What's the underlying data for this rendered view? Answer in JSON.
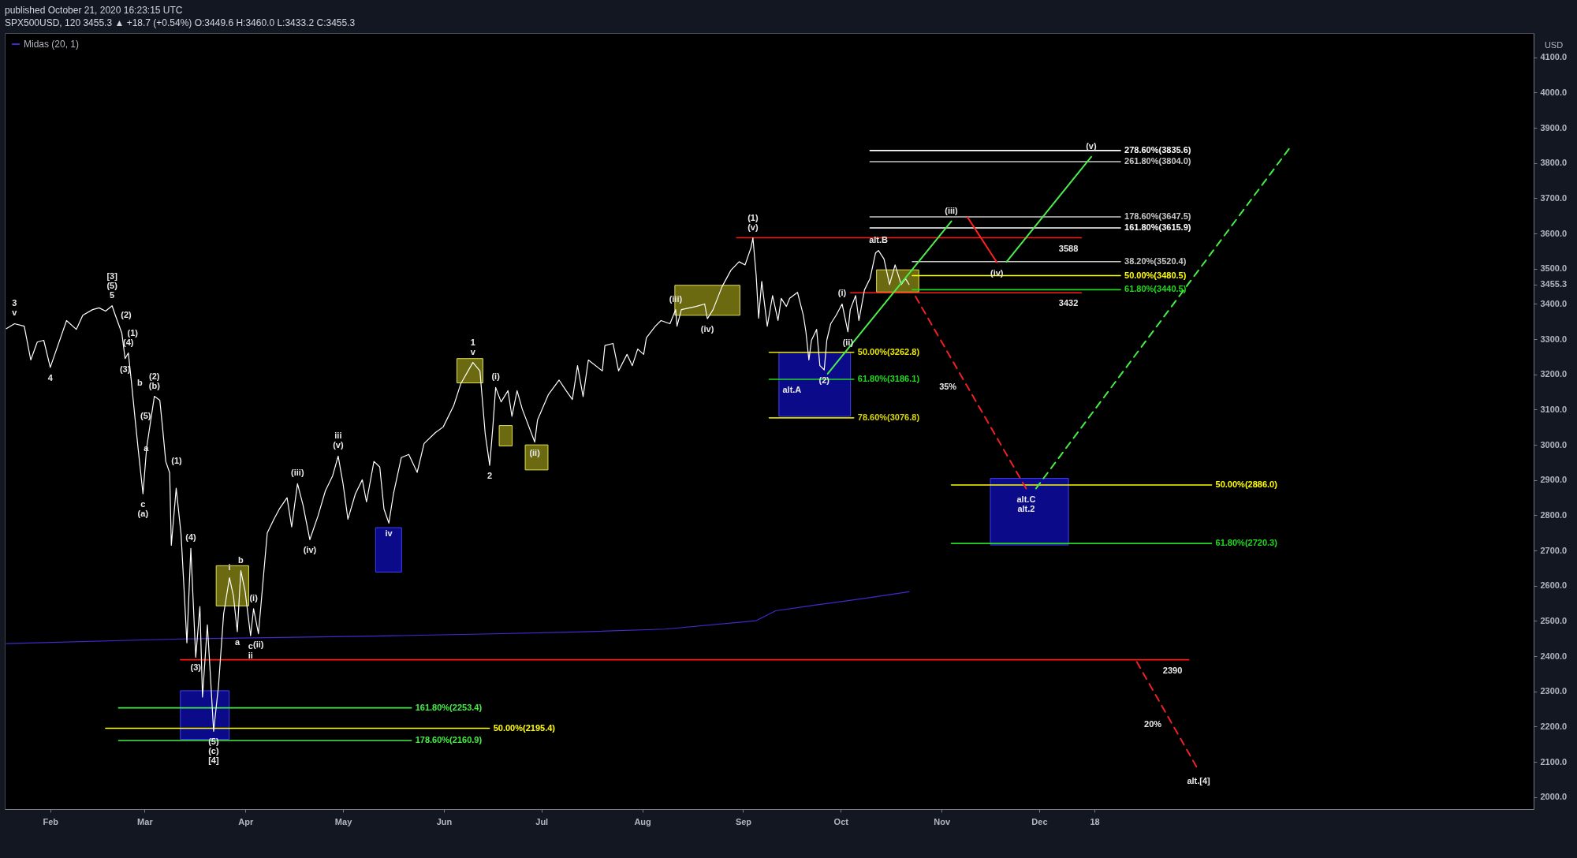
{
  "chart_data": {
    "type": "line",
    "title": "published October 21, 2020 16:23:15 UTC",
    "subtitle": "SPX500USD, 120  3455.3 ▲ +18.7 (+0.54%)  O:3449.6  H:3460.0  L:3433.2  C:3455.3",
    "ylabel": "USD",
    "xlim": [
      "2020-01-18",
      "2021-05-02"
    ],
    "xticks": [
      {
        "value": "2020-02-01",
        "label": "Feb"
      },
      {
        "value": "2020-03-01",
        "label": "Mar"
      },
      {
        "value": "2020-04-01",
        "label": "Apr"
      },
      {
        "value": "2020-05-01",
        "label": "May"
      },
      {
        "value": "2020-06-01",
        "label": "Jun"
      },
      {
        "value": "2020-07-01",
        "label": "Jul"
      },
      {
        "value": "2020-08-01",
        "label": "Aug"
      },
      {
        "value": "2020-09-01",
        "label": "Sep"
      },
      {
        "value": "2020-10-01",
        "label": "Oct"
      },
      {
        "value": "2020-11-01",
        "label": "Nov"
      },
      {
        "value": "2020-12-01",
        "label": "Dec"
      },
      {
        "value": "2020-12-18",
        "label": "18"
      }
    ],
    "ylim": [
      1966,
      4169
    ],
    "yticks": [
      {
        "value": 2000,
        "label": "2000.0"
      },
      {
        "value": 2100,
        "label": "2100.0"
      },
      {
        "value": 2200,
        "label": "2200.0"
      },
      {
        "value": 2300,
        "label": "2300.0"
      },
      {
        "value": 2400,
        "label": "2400.0"
      },
      {
        "value": 2500,
        "label": "2500.0"
      },
      {
        "value": 2600,
        "label": "2600.0"
      },
      {
        "value": 2700,
        "label": "2700.0"
      },
      {
        "value": 2800,
        "label": "2800.0"
      },
      {
        "value": 2900,
        "label": "2900.0"
      },
      {
        "value": 3000,
        "label": "3000.0"
      },
      {
        "value": 3100,
        "label": "3100.0"
      },
      {
        "value": 3200,
        "label": "3200.0"
      },
      {
        "value": 3300,
        "label": "3300.0"
      },
      {
        "value": 3400,
        "label": "3400.0"
      },
      3455.3,
      {
        "value": 3500,
        "label": "3500.0"
      },
      {
        "value": 3600,
        "label": "3600.0"
      },
      {
        "value": 3700,
        "label": "3700.0"
      },
      {
        "value": 3800,
        "label": "3800.0"
      },
      {
        "value": 3900,
        "label": "3900.0"
      },
      {
        "value": 4000,
        "label": "4000.0"
      },
      {
        "value": 4100,
        "label": "4100.0"
      }
    ],
    "grid": false,
    "legend": "top left",
    "series": [
      {
        "type": "area",
        "color": "#0b0b8a",
        "x": [
          "2020-03-12",
          "2020-03-27"
        ],
        "values": [
          null,
          null
        ],
        "lower": [
          2164,
          2164
        ],
        "upper": [
          2302,
          2302
        ]
      },
      {
        "type": "area",
        "color": "#0b0b8a",
        "x": [
          "2020-05-11",
          "2020-05-19"
        ],
        "values": [
          null,
          null
        ],
        "lower": [
          2639,
          2639
        ],
        "upper": [
          2765,
          2765
        ]
      },
      {
        "type": "area",
        "color": "#0b0b8a",
        "x": [
          "2020-09-12",
          "2020-10-04"
        ],
        "values": [
          null,
          null
        ],
        "lower": [
          3081,
          3081
        ],
        "upper": [
          3263,
          3263
        ]
      },
      {
        "type": "area",
        "color": "#0b0b8a",
        "x": [
          "2020-11-16",
          "2020-12-10"
        ],
        "values": [
          null,
          null
        ],
        "lower": [
          2716,
          2716
        ],
        "upper": [
          2905,
          2905
        ]
      },
      {
        "type": "area",
        "color": "#6b6a10",
        "x": [
          "2020-03-23",
          "2020-04-02"
        ],
        "values": [
          null,
          null
        ],
        "lower": [
          2543,
          2543
        ],
        "upper": [
          2657,
          2657
        ]
      },
      {
        "type": "area",
        "color": "#6b6a10",
        "x": [
          "2020-06-05",
          "2020-06-13"
        ],
        "values": [
          null,
          null
        ],
        "lower": [
          3176,
          3176
        ],
        "upper": [
          3245,
          3245
        ]
      },
      {
        "type": "area",
        "color": "#6b6a10",
        "x": [
          "2020-06-18",
          "2020-06-22"
        ],
        "values": [
          null,
          null
        ],
        "lower": [
          2997,
          2997
        ],
        "upper": [
          3055,
          3055
        ]
      },
      {
        "type": "area",
        "color": "#6b6a10",
        "x": [
          "2020-06-26",
          "2020-07-03"
        ],
        "values": [
          null,
          null
        ],
        "lower": [
          2929,
          2929
        ],
        "upper": [
          3000,
          3000
        ]
      },
      {
        "type": "area",
        "color": "#6b6a10",
        "x": [
          "2020-08-11",
          "2020-08-31"
        ],
        "values": [
          null,
          null
        ],
        "lower": [
          3368,
          3368
        ],
        "upper": [
          3453,
          3453
        ]
      },
      {
        "type": "area",
        "color": "#6b6a10",
        "x": [
          "2020-10-12",
          "2020-10-25"
        ],
        "values": [
          null,
          null
        ],
        "lower": [
          3434,
          3434
        ],
        "upper": [
          3497,
          3497
        ]
      },
      {
        "color": "#ff1a1a",
        "x": [
          "2020-08-30",
          "2020-12-14"
        ],
        "values": [
          3588,
          3588
        ]
      },
      {
        "color": "#ff1a1a",
        "x": [
          "2020-10-04",
          "2020-12-14"
        ],
        "values": [
          3432,
          3432
        ]
      },
      {
        "color": "#ff1a1a",
        "x": [
          "2020-03-12",
          "2021-01-16"
        ],
        "values": [
          2390,
          2390
        ]
      },
      {
        "name": "278.60%(3835.6)",
        "color": "#ffffff",
        "x": [
          "2020-10-10",
          "2020-12-26"
        ],
        "values": [
          3835.6,
          3835.6
        ]
      },
      {
        "name": "261.80%(3804.0)",
        "color": "#c8c8c8",
        "x": [
          "2020-10-10",
          "2020-12-26"
        ],
        "values": [
          3804.0,
          3804.0
        ]
      },
      {
        "name": "178.60%(3647.5)",
        "color": "#c8c8c8",
        "x": [
          "2020-10-10",
          "2020-12-26"
        ],
        "values": [
          3647.5,
          3647.5
        ]
      },
      {
        "name": "161.80%(3615.9)",
        "color": "#ffffff",
        "x": [
          "2020-10-10",
          "2020-12-26"
        ],
        "values": [
          3615.9,
          3615.9
        ]
      },
      {
        "name": "38.20%(3520.4)",
        "color": "#c8c8c8",
        "x": [
          "2020-10-23",
          "2020-12-26"
        ],
        "values": [
          3520.4,
          3520.4
        ]
      },
      {
        "name": "50.00%(3480.5)",
        "color": "#ffff00",
        "x": [
          "2020-10-23",
          "2020-12-26"
        ],
        "values": [
          3480.5,
          3480.5
        ]
      },
      {
        "name": "61.80%(3440.5)",
        "color": "#22d822",
        "x": [
          "2020-10-23",
          "2020-12-26"
        ],
        "values": [
          3440.5,
          3440.5
        ]
      },
      {
        "name": "50.00%(3262.8)",
        "color": "#e6e600",
        "x": [
          "2020-09-09",
          "2020-10-05"
        ],
        "values": [
          3262.8,
          3262.8
        ]
      },
      {
        "name": "61.80%(3186.1)",
        "color": "#22d822",
        "x": [
          "2020-09-09",
          "2020-10-05"
        ],
        "values": [
          3186.1,
          3186.1
        ]
      },
      {
        "name": "78.60%(3076.8)",
        "color": "#d8d800",
        "x": [
          "2020-09-09",
          "2020-10-05"
        ],
        "values": [
          3076.8,
          3076.8
        ]
      },
      {
        "name": "50.00%(2886.0)",
        "color": "#ffff00",
        "x": [
          "2020-11-04",
          "2021-01-23"
        ],
        "values": [
          2886.0,
          2886.0
        ]
      },
      {
        "name": "61.80%(2720.3)",
        "color": "#22d822",
        "x": [
          "2020-11-04",
          "2021-01-23"
        ],
        "values": [
          2720.3,
          2720.3
        ]
      },
      {
        "name": "161.80%(2253.4)",
        "color": "#44ee44",
        "x": [
          "2020-02-22",
          "2020-05-22"
        ],
        "values": [
          2253.4,
          2253.4
        ]
      },
      {
        "name": "50.00%(2195.4)",
        "color": "#ffff00",
        "x": [
          "2020-02-18",
          "2020-06-15"
        ],
        "values": [
          2195.4,
          2195.4
        ]
      },
      {
        "name": "178.60%(2160.9)",
        "color": "#44ee44",
        "x": [
          "2020-02-22",
          "2020-05-22"
        ],
        "values": [
          2160.9,
          2160.9
        ]
      },
      {
        "name": "Midas (20, 1)",
        "color": "#3f2bd1",
        "x": [
          "2020-01-18T12:00",
          "2020-03-12",
          "2020-05-10",
          "2020-06-13",
          "2020-07-12",
          "2020-08-08",
          "2020-09-05",
          "2020-09-11",
          "2020-09-23",
          "2020-10-09",
          "2020-10-22"
        ],
        "values": [
          2436,
          2449,
          2457,
          2463,
          2469,
          2477,
          2501,
          2529,
          2545,
          2565,
          2583
        ]
      },
      {
        "color": "#ffffff",
        "x": [
          "2020-01-18T12:00",
          "2020-01-21",
          "2020-01-24",
          "2020-01-26",
          "2020-01-28",
          "2020-01-30",
          "2020-02-01",
          "2020-02-06",
          "2020-02-09",
          "2020-02-11",
          "2020-02-14",
          "2020-02-16",
          "2020-02-18",
          "2020-02-20",
          "2020-02-21",
          "2020-02-23",
          "2020-02-24",
          "2020-02-25",
          "2020-02-26",
          "2020-02-27",
          "2020-02-28",
          "2020-02-29T12:00",
          "2020-03-01T15:00",
          "2020-03-04",
          "2020-03-05T16:00",
          "2020-03-06T12:00",
          "2020-03-07T12:00",
          "2020-03-08T17:00",
          "2020-03-09T05:00",
          "2020-03-10T17:00",
          "2020-03-12T05:00",
          "2020-03-13",
          "2020-03-14",
          "2020-03-15T05:00",
          "2020-03-16T17:00",
          "2020-03-18",
          "2020-03-18T19:00",
          "2020-03-20T07:00",
          "2020-03-21T07:00",
          "2020-03-22T05:00",
          "2020-03-23T17:00",
          "2020-03-25T07:00",
          "2020-03-27T02:00",
          "2020-03-28T07:00",
          "2020-03-29T12:00",
          "2020-03-30T14:00",
          "2020-03-31T22:00",
          "2020-04-02T14:00",
          "2020-04-03T12:00",
          "2020-04-05",
          "2020-04-06T12:00",
          "2020-04-07T17:00",
          "2020-04-09T17:00",
          "2020-04-11T10:00",
          "2020-04-13T19:00",
          "2020-04-15T05:00",
          "2020-04-17",
          "2020-04-18T17:00",
          "2020-04-20T19:00",
          "2020-04-23T07:00",
          "2020-04-25T14:00",
          "2020-04-27T19:00",
          "2020-04-29T12:00",
          "2020-05-01",
          "2020-05-02T12:00",
          "2020-05-04T19:00",
          "2020-05-06T22:00",
          "2020-05-08T05:00",
          "2020-05-10T12:00",
          "2020-05-12T07:00",
          "2020-05-13T14:00",
          "2020-05-15T02:00",
          "2020-05-16T12:00",
          "2020-05-18T22:00",
          "2020-05-21T05:00",
          "2020-05-23T19:00",
          "2020-05-25T22:00",
          "2020-05-29T10:00",
          "2020-05-31T19:00",
          "2020-06-04",
          "2020-06-06T05:00",
          "2020-06-09T22:00",
          "2020-06-12T02:00",
          "2020-06-13T17:00",
          "2020-06-15T02:00",
          "2020-06-16T02:00",
          "2020-06-16T22:00",
          "2020-06-18T14:00",
          "2020-06-20T17:00",
          "2020-06-21T22:00",
          "2020-06-23T12:00",
          "2020-06-25T02:00",
          "2020-06-28T22:00",
          "2020-06-29T19:00",
          "2020-07-03T02:00",
          "2020-07-06T10:00",
          "2020-07-08T14:00",
          "2020-07-10T12:00",
          "2020-07-12T02:00",
          "2020-07-13T19:00",
          "2020-07-15T10:00",
          "2020-07-19T17:00",
          "2020-07-20T12:00",
          "2020-07-23",
          "2020-07-24T17:00",
          "2020-07-27T07:00",
          "2020-07-28T22:00",
          "2020-07-30T14:00",
          "2020-08-01T10:00",
          "2020-08-02T06:00",
          "2020-08-05",
          "2020-08-06T18:00",
          "2020-08-09T12:00",
          "2020-08-11T06:00",
          "2020-08-11T16:00",
          "2020-08-13",
          "2020-08-17T12:00",
          "2020-08-20T04:00",
          "2020-08-21",
          "2020-08-22T18:00",
          "2020-08-25T12:00",
          "2020-08-28T06:00",
          "2020-08-30T18:00",
          "2020-09-01T14:00",
          "2020-09-03T10:00",
          "2020-09-04",
          "2020-09-05",
          "2020-09-05T18:00",
          "2020-09-06T17:00",
          "2020-09-08T10:00",
          "2020-09-10T01:00",
          "2020-09-11T17:00",
          "2020-09-12T17:00",
          "2020-09-14T07:00",
          "2020-09-15T07:00",
          "2020-09-17T17:00",
          "2020-09-19T12:00",
          "2020-09-20T07:00",
          "2020-09-21T05:00",
          "2020-09-22",
          "2020-09-23T14:00",
          "2020-09-24T14:00",
          "2020-09-25T22:00",
          "2020-09-26T17:00",
          "2020-09-27T22:00",
          "2020-09-29T14:00",
          "2020-10-01T10:00",
          "2020-10-03T05:00",
          "2020-10-03T22:00",
          "2020-10-05T14:00",
          "2020-10-06T14:00",
          "2020-10-08T07:00",
          "2020-10-10",
          "2020-10-11T17:00",
          "2020-10-12T14:00",
          "2020-10-14T07:00",
          "2020-10-16",
          "2020-10-17T17:00",
          "2020-10-19T14:00",
          "2020-10-20T22:00",
          "2020-10-22"
        ],
        "values": [
          3330,
          3344,
          3337,
          3241,
          3292,
          3297,
          3220,
          3353,
          3328,
          3368,
          3384,
          3389,
          3380,
          3395,
          3368,
          3317,
          3245,
          3261,
          3174,
          3080,
          2990,
          2861,
          2992,
          3138,
          3127,
          3051,
          2953,
          2921,
          2715,
          2877,
          2746,
          2612,
          2438,
          2706,
          2397,
          2541,
          2284,
          2489,
          2335,
          2187,
          2315,
          2520,
          2623,
          2572,
          2470,
          2643,
          2583,
          2458,
          2535,
          2464,
          2623,
          2750,
          2788,
          2818,
          2850,
          2767,
          2890,
          2829,
          2731,
          2798,
          2870,
          2912,
          2968,
          2890,
          2789,
          2861,
          2901,
          2838,
          2953,
          2937,
          2818,
          2778,
          2861,
          2964,
          2973,
          2922,
          3004,
          3035,
          3051,
          3111,
          3174,
          3234,
          3210,
          3031,
          2942,
          3055,
          3163,
          3122,
          3154,
          3081,
          3154,
          3102,
          3008,
          3071,
          3142,
          3184,
          3154,
          3129,
          3225,
          3137,
          3241,
          3210,
          3282,
          3288,
          3210,
          3257,
          3225,
          3272,
          3257,
          3304,
          3337,
          3353,
          3344,
          3384,
          3337,
          3384,
          3393,
          3400,
          3358,
          3384,
          3449,
          3496,
          3520,
          3511,
          3560,
          3588,
          3481,
          3360,
          3464,
          3337,
          3424,
          3353,
          3416,
          3393,
          3416,
          3433,
          3368,
          3321,
          3241,
          3297,
          3328,
          3225,
          3213,
          3297,
          3344,
          3368,
          3400,
          3321,
          3384,
          3424,
          3353,
          3440,
          3472,
          3545,
          3552,
          3528,
          3455,
          3511,
          3455,
          3472,
          3455.3
        ]
      },
      {
        "color": "#4cee4c",
        "x": [
          "2020-09-27",
          "2020-11-04"
        ],
        "values": [
          3202,
          3635
        ]
      },
      {
        "color": "#ff2020",
        "x": [
          "2020-11-09",
          "2020-11-18"
        ],
        "values": [
          3646,
          3518
        ]
      },
      {
        "color": "#4cee4c",
        "x": [
          "2020-11-21",
          "2020-12-17"
        ],
        "values": [
          3520,
          3818
        ]
      },
      {
        "color": "#ee2222",
        "line_style": "dashed",
        "x": [
          "2020-10-24",
          "2020-11-27"
        ],
        "values": [
          3421,
          2876
        ]
      },
      {
        "color": "#44ee44",
        "line_style": "dashed",
        "x": [
          "2020-11-30",
          "2021-02-16"
        ],
        "values": [
          2876,
          3843
        ]
      },
      {
        "color": "#ee2222",
        "line_style": "dashed",
        "x": [
          "2020-12-31",
          "2021-01-19"
        ],
        "values": [
          2384,
          2076
        ]
      }
    ],
    "annotations": [
      {
        "text": "v",
        "x": "2020-01-21",
        "y": 3344
      },
      {
        "text": "3",
        "x": "2020-01-21",
        "y": 3344
      },
      {
        "text": "4",
        "x": "2020-02-01",
        "y": 3220
      },
      {
        "text": "5",
        "x": "2020-02-20",
        "y": 3395
      },
      {
        "text": "(5)",
        "x": "2020-02-20",
        "y": 3395
      },
      {
        "text": "[3]",
        "x": "2020-02-20",
        "y": 3395
      },
      {
        "text": "(2)",
        "x": "2020-02-21",
        "y": 3368
      },
      {
        "text": "(1)",
        "x": "2020-02-23",
        "y": 3317
      },
      {
        "text": "(3)",
        "x": "2020-02-24",
        "y": 3245
      },
      {
        "text": "(4)",
        "x": "2020-02-25",
        "y": 3261
      },
      {
        "text": "b",
        "x": "2020-02-26",
        "y": 3174
      },
      {
        "text": "(5)",
        "x": "2020-02-27",
        "y": 3080
      },
      {
        "text": "a",
        "x": "2020-02-28",
        "y": 2990
      },
      {
        "text": "c",
        "x": "2020-02-29T12:00",
        "y": 2861
      },
      {
        "text": "(a)",
        "x": "2020-02-29T12:00",
        "y": 2861
      },
      {
        "text": "(b)",
        "x": "2020-03-04",
        "y": 3138
      },
      {
        "text": "(2)",
        "x": "2020-03-04",
        "y": 3138
      },
      {
        "text": "(1)",
        "x": "2020-03-07T12:00",
        "y": 2953
      },
      {
        "text": "(4)",
        "x": "2020-03-15T05:00",
        "y": 2706
      },
      {
        "text": "(3)",
        "x": "2020-03-16T17:00",
        "y": 2397
      },
      {
        "text": "(5)",
        "x": "2020-03-22T05:00",
        "y": 2187
      },
      {
        "text": "(c)",
        "x": "2020-03-22T05:00",
        "y": 2187
      },
      {
        "text": "[4]",
        "x": "2020-03-22T05:00",
        "y": 2187
      },
      {
        "text": "i",
        "x": "2020-03-27T02:00",
        "y": 2623
      },
      {
        "text": "a",
        "x": "2020-03-29T12:00",
        "y": 2470
      },
      {
        "text": "b",
        "x": "2020-03-30T14:00",
        "y": 2643
      },
      {
        "text": "c",
        "x": "2020-04-02T14:00",
        "y": 2458
      },
      {
        "text": "ii",
        "x": "2020-04-02T14:00",
        "y": 2458
      },
      {
        "text": "(i)",
        "x": "2020-04-03T12:00",
        "y": 2535
      },
      {
        "text": "(ii)",
        "x": "2020-04-05",
        "y": 2464
      },
      {
        "text": "(iii)",
        "x": "2020-04-17",
        "y": 2890
      },
      {
        "text": "(iv)",
        "x": "2020-04-20T19:00",
        "y": 2731
      },
      {
        "text": "(v)",
        "x": "2020-04-29T12:00",
        "y": 2968
      },
      {
        "text": "iii",
        "x": "2020-04-29T12:00",
        "y": 2968
      },
      {
        "text": "iv",
        "x": "2020-05-15T02:00",
        "y": 2778
      },
      {
        "text": "v",
        "x": "2020-06-09T22:00",
        "y": 3234
      },
      {
        "text": "1",
        "x": "2020-06-09T22:00",
        "y": 3234
      },
      {
        "text": "2",
        "x": "2020-06-15T02:00",
        "y": 2942
      },
      {
        "text": "(i)",
        "x": "2020-06-16T22:00",
        "y": 3163
      },
      {
        "text": "(ii)",
        "x": "2020-06-28T22:00",
        "y": 3008
      },
      {
        "text": "(iii)",
        "x": "2020-08-11T06:00",
        "y": 3384
      },
      {
        "text": "(iv)",
        "x": "2020-08-21",
        "y": 3358
      },
      {
        "text": "(v)",
        "x": "2020-09-04",
        "y": 3588
      },
      {
        "text": "(1)",
        "x": "2020-09-04",
        "y": 3588
      },
      {
        "text": "(2)",
        "x": "2020-09-25T22:00",
        "y": 3213
      },
      {
        "text": "alt.A",
        "x": "2020-09-16",
        "y": 3186.1
      },
      {
        "text": "(i)",
        "x": "2020-10-01T10:00",
        "y": 3400
      },
      {
        "text": "(ii)",
        "x": "2020-10-03T05:00",
        "y": 3321
      },
      {
        "text": "alt.B",
        "x": "2020-10-12T14:00",
        "y": 3552
      },
      {
        "text": "35%",
        "x": "2020-11-09",
        "y": 3164.5
      },
      {
        "text": "(iii)",
        "x": "2020-11-04",
        "y": 3635
      },
      {
        "text": "(iv)",
        "x": "2020-11-18",
        "y": 3518
      },
      {
        "text": "(v)",
        "x": "2020-12-17",
        "y": 3818
      },
      {
        "text": "alt.C",
        "x": "2020-11-27",
        "y": 2876
      },
      {
        "text": "alt.2",
        "x": "2020-11-27",
        "y": 2876
      },
      {
        "text": "20%",
        "x": "2021-01-11",
        "y": 2205.7
      },
      {
        "text": "alt.[4]",
        "x": "2021-01-19",
        "y": 2076
      },
      {
        "text": "3588",
        "x": "2020-12-10",
        "y": 3588
      },
      {
        "text": "3432",
        "x": "2020-12-10",
        "y": 3432
      },
      {
        "text": "2390",
        "x": "2021-01-11",
        "y": 2390
      }
    ]
  }
}
